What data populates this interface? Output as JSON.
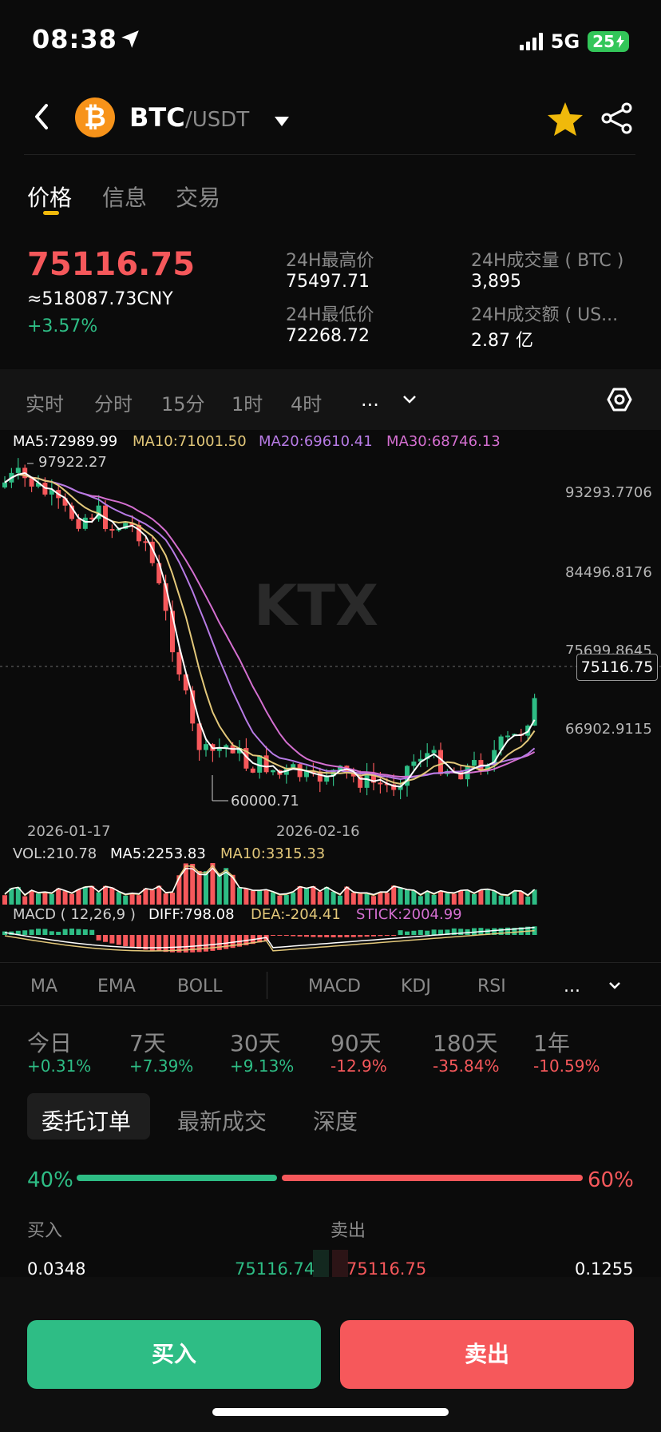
{
  "status_bar": {
    "time": "08:38",
    "network": "5G",
    "battery": "25"
  },
  "header": {
    "base": "BTC",
    "quote": "/USDT"
  },
  "tabs": [
    {
      "label": "价格"
    },
    {
      "label": "信息"
    },
    {
      "label": "交易"
    }
  ],
  "price": {
    "last": "75116.75",
    "cny": "≈518087.73CNY",
    "change": "+3.57%"
  },
  "stats": {
    "high_label": "24H最高价",
    "high": "75497.71",
    "low_label": "24H最低价",
    "low": "72268.72",
    "vol_label": "24H成交量 ( BTC )",
    "vol": "3,895",
    "amt_label": "24H成交额 ( US...",
    "amt": "2.87 亿"
  },
  "intervals": [
    "实时",
    "分时",
    "15分",
    "1时",
    "4时",
    "..."
  ],
  "ma_legend": {
    "ma5": "MA5:72989.99",
    "ma10": "MA10:71001.50",
    "ma20": "MA20:69610.41",
    "ma30": "MA30:68746.13"
  },
  "axis": {
    "y1": "93293.7706",
    "y2": "84496.8176",
    "y3": "75699.8645",
    "y4": "66902.9115",
    "x1": "2026-01-17",
    "x2": "2026-02-16",
    "max_label": "97922.27",
    "min_label": "60000.71",
    "current": "75116.75"
  },
  "watermark": "KTX",
  "volume_legend": {
    "vol": "VOL:210.78",
    "ma5": "MA5:2253.83",
    "ma10": "MA10:3315.33"
  },
  "macd_legend": {
    "title": "MACD ( 12,26,9 )",
    "diff": "DIFF:798.08",
    "dea": "DEA:-204.41",
    "stick": "STICK:2004.99"
  },
  "indicators": [
    "MA",
    "EMA",
    "BOLL",
    "MACD",
    "KDJ",
    "RSI",
    "..."
  ],
  "performance": [
    {
      "label": "今日",
      "value": "+0.31%"
    },
    {
      "label": "7天",
      "value": "+7.39%"
    },
    {
      "label": "30天",
      "value": "+9.13%"
    },
    {
      "label": "90天",
      "value": "-12.9%"
    },
    {
      "label": "180天",
      "value": "-35.84%"
    },
    {
      "label": "1年",
      "value": "-10.59%"
    }
  ],
  "order_tabs": [
    "委托订单",
    "最新成交",
    "深度"
  ],
  "ratio": {
    "buy": "40%",
    "sell": "60%",
    "buy_fraction": 0.4
  },
  "book": {
    "buy_header": "买入",
    "sell_header": "卖出",
    "row": {
      "buy_qty": "0.0348",
      "buy_price": "75116.74",
      "sell_price": "75116.75",
      "sell_qty": "0.1255"
    }
  },
  "buttons": {
    "buy": "买入",
    "sell": "卖出"
  },
  "colors": {
    "up": "#2ebd85",
    "down": "#f6585b",
    "accent": "#f0b90b"
  }
}
